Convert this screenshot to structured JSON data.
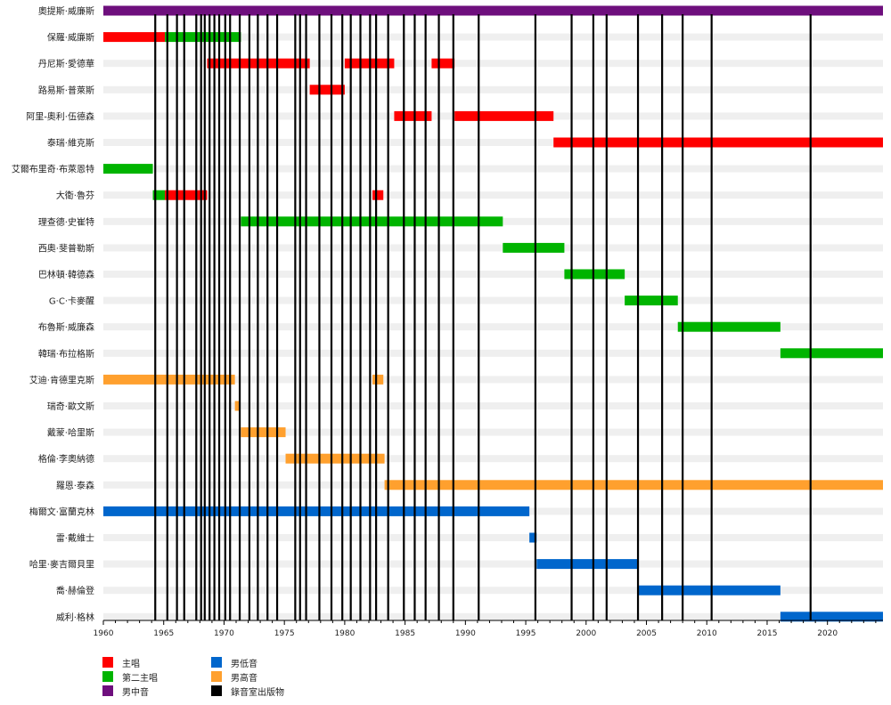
{
  "chart_data": {
    "type": "timeline",
    "x_range": [
      1960,
      2024.6
    ],
    "x_ticks": [
      1960,
      1965,
      1970,
      1975,
      1980,
      1985,
      1990,
      1995,
      2000,
      2005,
      2010,
      2015,
      2020
    ],
    "colors": {
      "lead": "#ff0000",
      "second_lead": "#00b400",
      "baritone": "#6e0f7d",
      "bass": "#0066cc",
      "tenor": "#ffa02e",
      "studio_album": "#000000"
    },
    "members": [
      {
        "name": "奧提斯·威廉斯",
        "spans": [
          {
            "role": "baritone",
            "start": 1960,
            "end": 2024.6
          }
        ]
      },
      {
        "name": "保羅·威廉斯",
        "spans": [
          {
            "role": "lead",
            "start": 1960,
            "end": 1965.1
          },
          {
            "role": "second_lead",
            "start": 1965.1,
            "end": 1971.4
          }
        ]
      },
      {
        "name": "丹尼斯·愛德華",
        "spans": [
          {
            "role": "lead",
            "start": 1968.6,
            "end": 1977.1
          },
          {
            "role": "lead",
            "start": 1980,
            "end": 1984.1
          },
          {
            "role": "lead",
            "start": 1987.2,
            "end": 1989.1
          }
        ]
      },
      {
        "name": "路易斯·普萊斯",
        "spans": [
          {
            "role": "lead",
            "start": 1977.1,
            "end": 1980
          }
        ]
      },
      {
        "name": "阿里-奧利·伍德森",
        "spans": [
          {
            "role": "lead",
            "start": 1984.1,
            "end": 1987.2
          },
          {
            "role": "lead",
            "start": 1989.1,
            "end": 1997.3
          }
        ]
      },
      {
        "name": "泰瑞·維克斯",
        "spans": [
          {
            "role": "lead",
            "start": 1997.3,
            "end": 2024.6
          }
        ]
      },
      {
        "name": "艾爾布里奇·布萊恩特",
        "spans": [
          {
            "role": "second_lead",
            "start": 1960,
            "end": 1964.1
          }
        ]
      },
      {
        "name": "大衛·魯芬",
        "spans": [
          {
            "role": "second_lead",
            "start": 1964.1,
            "end": 1965.1
          },
          {
            "role": "lead",
            "start": 1965.1,
            "end": 1968.6
          },
          {
            "role": "lead",
            "start": 1982.3,
            "end": 1983.2
          }
        ]
      },
      {
        "name": "理查德·史崔特",
        "spans": [
          {
            "role": "second_lead",
            "start": 1971.4,
            "end": 1993.1
          }
        ]
      },
      {
        "name": "西奧·斐普勒斯",
        "spans": [
          {
            "role": "second_lead",
            "start": 1993.1,
            "end": 1998.2
          }
        ]
      },
      {
        "name": "巴林頓·韓德森",
        "spans": [
          {
            "role": "second_lead",
            "start": 1998.2,
            "end": 2003.2
          }
        ]
      },
      {
        "name": "G·C·卡麥醒",
        "spans": [
          {
            "role": "second_lead",
            "start": 2003.2,
            "end": 2007.6
          }
        ]
      },
      {
        "name": "布魯斯·威廉森",
        "spans": [
          {
            "role": "second_lead",
            "start": 2007.6,
            "end": 2016.1
          }
        ]
      },
      {
        "name": "韓瑞·布拉格斯",
        "spans": [
          {
            "role": "second_lead",
            "start": 2016.1,
            "end": 2024.6
          }
        ]
      },
      {
        "name": "艾迪·肯德里克斯",
        "spans": [
          {
            "role": "tenor",
            "start": 1960,
            "end": 1970.9
          },
          {
            "role": "tenor",
            "start": 1982.3,
            "end": 1983.2
          }
        ]
      },
      {
        "name": "瑞奇·歐文斯",
        "spans": [
          {
            "role": "tenor",
            "start": 1970.9,
            "end": 1971.3
          }
        ]
      },
      {
        "name": "戴蒙·哈里斯",
        "spans": [
          {
            "role": "tenor",
            "start": 1971.4,
            "end": 1975.1
          }
        ]
      },
      {
        "name": "格倫·李奧納德",
        "spans": [
          {
            "role": "tenor",
            "start": 1975.1,
            "end": 1983.3
          }
        ]
      },
      {
        "name": "羅恩·泰森",
        "spans": [
          {
            "role": "tenor",
            "start": 1983.3,
            "end": 2024.6
          }
        ]
      },
      {
        "name": "梅爾文·富蘭克林",
        "spans": [
          {
            "role": "bass",
            "start": 1960,
            "end": 1995.3
          }
        ]
      },
      {
        "name": "雷·戴維士",
        "spans": [
          {
            "role": "bass",
            "start": 1995.3,
            "end": 1995.9
          }
        ]
      },
      {
        "name": "哈里·麥吉爾貝里",
        "spans": [
          {
            "role": "bass",
            "start": 1995.9,
            "end": 2004.3
          }
        ]
      },
      {
        "name": "喬·赫倫登",
        "spans": [
          {
            "role": "bass",
            "start": 2004.3,
            "end": 2016.1
          }
        ]
      },
      {
        "name": "威利·格林",
        "spans": [
          {
            "role": "bass",
            "start": 2016.1,
            "end": 2024.6
          }
        ]
      }
    ],
    "studio_albums": [
      1964.3,
      1965.3,
      1966.1,
      1966.7,
      1967.7,
      1968.1,
      1968.4,
      1968.8,
      1969.2,
      1969.6,
      1970.1,
      1970.5,
      1971.3,
      1972.1,
      1972.8,
      1973.6,
      1974.4,
      1975.9,
      1976.3,
      1976.8,
      1977.9,
      1978.9,
      1979.8,
      1980.5,
      1981.3,
      1982.1,
      1982.6,
      1983.6,
      1984.9,
      1985.8,
      1986.7,
      1987.8,
      1989,
      1991.1,
      1995.8,
      1998.8,
      2000.6,
      2001.7,
      2004.3,
      2006.3,
      2008,
      2010.4,
      2018.6
    ],
    "legend": [
      {
        "role": "lead",
        "label": "主唱"
      },
      {
        "role": "second_lead",
        "label": "第二主唱"
      },
      {
        "role": "baritone",
        "label": "男中音"
      },
      {
        "role": "bass",
        "label": "男低音"
      },
      {
        "role": "tenor",
        "label": "男高音"
      },
      {
        "role": "studio_album",
        "label": "錄音室出版物"
      }
    ]
  }
}
